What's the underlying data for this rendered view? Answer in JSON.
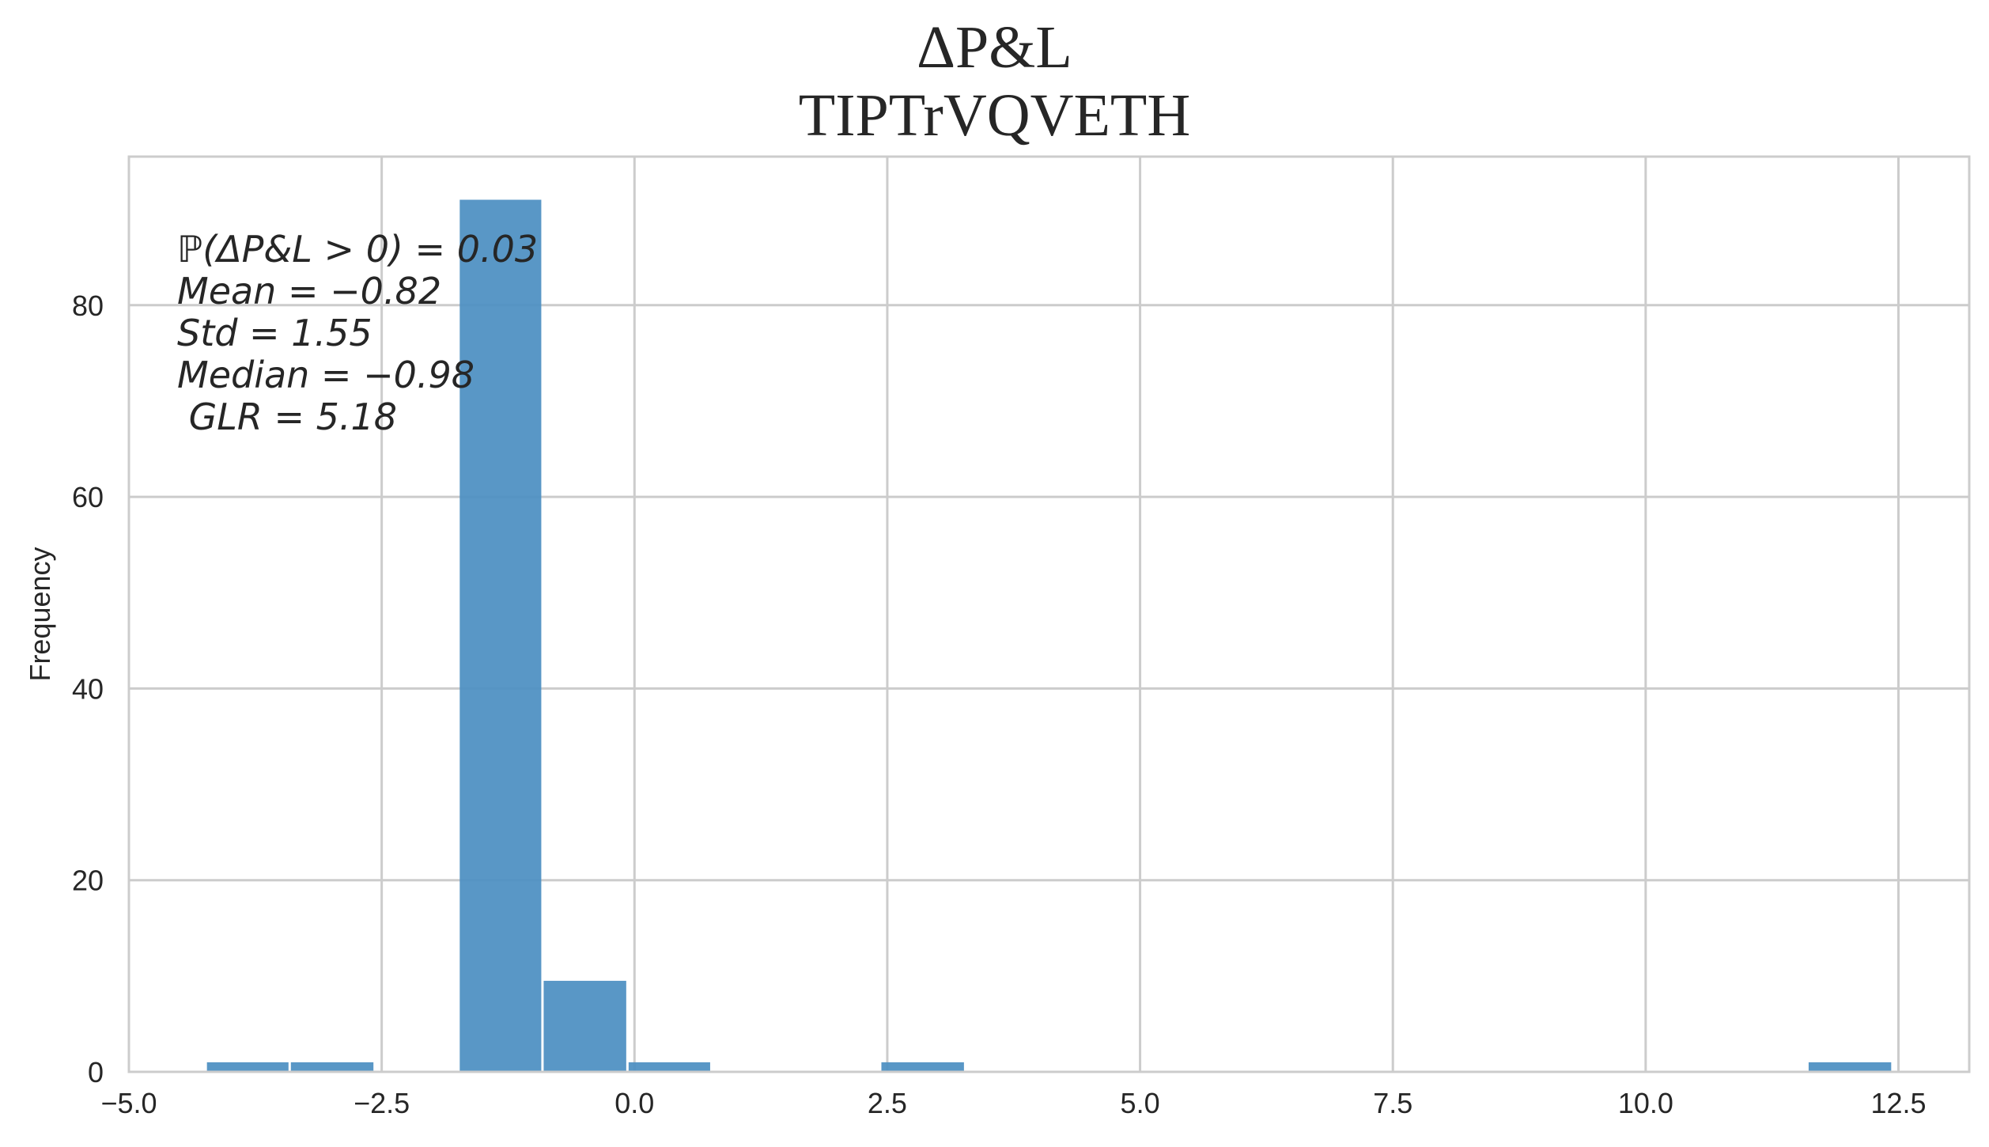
{
  "chart_data": {
    "type": "bar",
    "title": "ΔP&L",
    "subtitle": "TIPTrVQVETH",
    "xlabel": "",
    "ylabel": "Frequency",
    "xlim": [
      -5.0,
      13.2
    ],
    "ylim": [
      0,
      95.5
    ],
    "xticks": [
      "−5.0",
      "−2.5",
      "0.0",
      "2.5",
      "5.0",
      "7.5",
      "10.0",
      "12.5"
    ],
    "xtick_values": [
      -5.0,
      -2.5,
      0.0,
      2.5,
      5.0,
      7.5,
      10.0,
      12.5
    ],
    "yticks": [
      "0",
      "20",
      "40",
      "60",
      "80"
    ],
    "ytick_values": [
      0,
      20,
      40,
      60,
      80
    ],
    "grid": true,
    "bar_color": "#4c8fc2",
    "bins": [
      {
        "x0": -4.24,
        "x1": -3.41,
        "count": 1
      },
      {
        "x0": -3.41,
        "x1": -2.57,
        "count": 1
      },
      {
        "x0": -1.74,
        "x1": -0.91,
        "count": 91
      },
      {
        "x0": -0.91,
        "x1": -0.07,
        "count": 9.5
      },
      {
        "x0": -0.07,
        "x1": 0.76,
        "count": 1
      },
      {
        "x0": 2.43,
        "x1": 3.27,
        "count": 1
      },
      {
        "x0": 11.6,
        "x1": 12.44,
        "count": 1
      }
    ],
    "annotations": [
      "ℙ(ΔP&L > 0) = 0.03",
      "Mean = −0.82",
      "Std = 1.55",
      "Median = −0.98",
      " GLR = 5.18"
    ]
  }
}
